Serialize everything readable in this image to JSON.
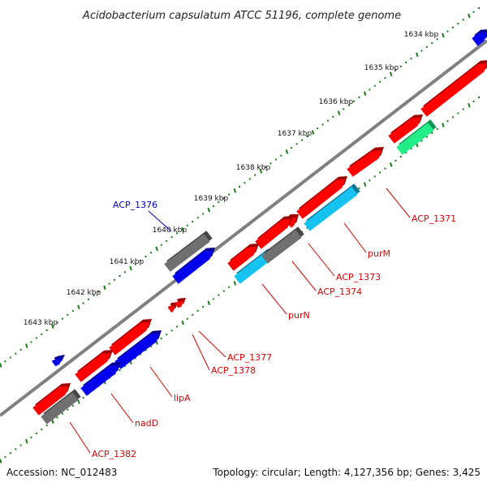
{
  "title": "Acidobacterium capsulatum ATCC 51196, complete genome",
  "footer": {
    "accession": "Accession: NC_012483",
    "summary": "Topology: circular; Length: 4,127,356 bp; Genes: 3,425"
  },
  "colors": {
    "backbone": "#808080",
    "ticks": "#1a7a1a",
    "cds_forward": "#ff0000",
    "gene_dark": "#707070",
    "rna_blue": "#0000ee",
    "light_blue": "#16c2f0",
    "green": "#22ee88",
    "label_red": "#dd0000",
    "label_blue": "#0000cc"
  },
  "kbp_labels": [
    "1634 kbp",
    "1635 kbp",
    "1636 kbp",
    "1637 kbp",
    "1638 kbp",
    "1639 kbp",
    "1640 kbp",
    "1641 kbp",
    "1642 kbp",
    "1643 kbp"
  ],
  "gene_labels": [
    {
      "text": "ACP_1376",
      "color": "label_blue"
    },
    {
      "text": "ACP_1371",
      "color": "label_red"
    },
    {
      "text": "purM",
      "color": "label_red"
    },
    {
      "text": "ACP_1373",
      "color": "label_red"
    },
    {
      "text": "ACP_1374",
      "color": "label_red"
    },
    {
      "text": "purN",
      "color": "label_red"
    },
    {
      "text": "ACP_1377",
      "color": "label_red"
    },
    {
      "text": "ACP_1378",
      "color": "label_red"
    },
    {
      "text": "lipA",
      "color": "label_red"
    },
    {
      "text": "nadD",
      "color": "label_red"
    },
    {
      "text": "ACP_1382",
      "color": "label_red"
    }
  ]
}
